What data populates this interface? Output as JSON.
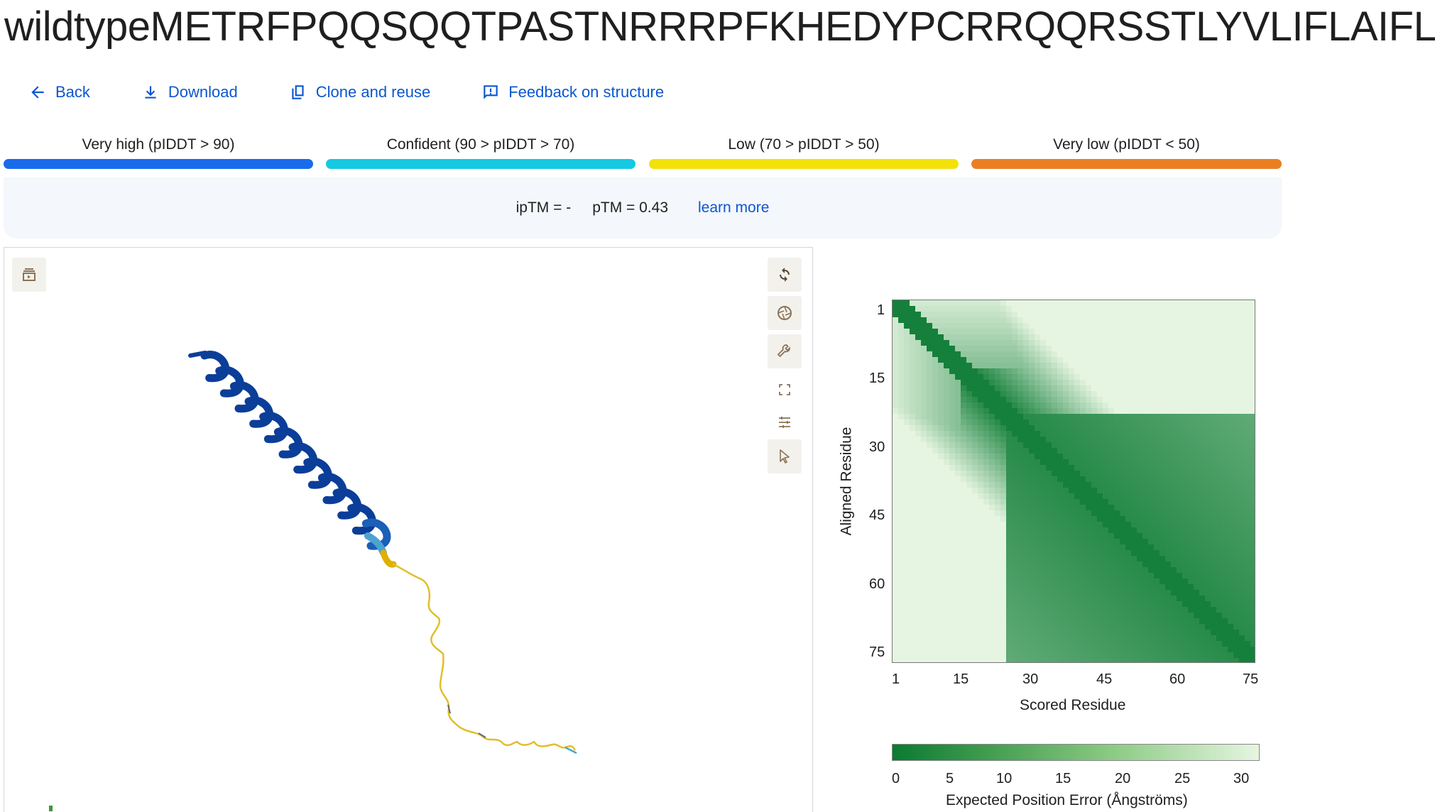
{
  "title": "wildtypeMETRFPQQSQQTPASTNRRRPFKHEDYPCRRQQRSSTLYVLIFLAIFLSKFTNQLL",
  "toolbar": {
    "back": "Back",
    "download": "Download",
    "clone": "Clone and reuse",
    "feedback": "Feedback on structure"
  },
  "legend": [
    {
      "label": "Very high (pIDDT > 90)",
      "color": "#1a6bec"
    },
    {
      "label": "Confident (90 > pIDDT > 70)",
      "color": "#16c9e3"
    },
    {
      "label": "Low (70 > pIDDT > 50)",
      "color": "#f2e20a"
    },
    {
      "label": "Very low (pIDDT < 50)",
      "color": "#ea7f22"
    }
  ],
  "scores": {
    "iptm": "ipTM = -",
    "ptm": "pTM = 0.43",
    "learn_more": "learn more"
  },
  "viewer": {
    "left_icon": "film-icon",
    "right_icons": [
      "refresh-icon",
      "camera-shutter-icon",
      "wrench-icon",
      "fullscreen-icon",
      "sliders-icon",
      "cursor-icon"
    ]
  },
  "pae": {
    "y_ticks": [
      "1",
      "15",
      "30",
      "45",
      "60",
      "75"
    ],
    "x_ticks": [
      "1",
      "15",
      "30",
      "45",
      "60",
      "75"
    ],
    "x_label": "Scored Residue",
    "y_label": "Aligned Residue",
    "colorbar_ticks": [
      "0",
      "5",
      "10",
      "15",
      "20",
      "25",
      "30"
    ],
    "colorbar_label": "Expected Position Error (Ångströms)",
    "color_low": "#0a7a32",
    "color_high": "#e6f5e1"
  }
}
